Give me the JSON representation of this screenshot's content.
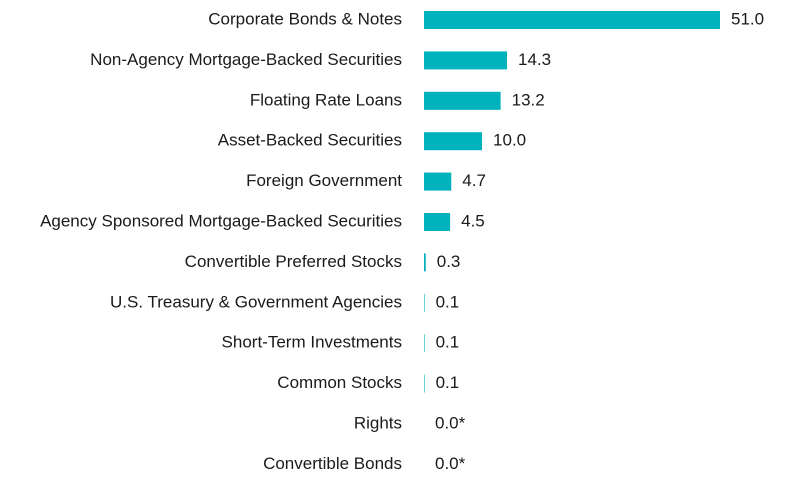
{
  "chart_data": {
    "type": "bar",
    "orientation": "horizontal",
    "color": "#00b2bb",
    "categories": [
      "Corporate Bonds & Notes",
      "Non-Agency Mortgage-Backed Securities",
      "Floating Rate Loans",
      "Asset-Backed Securities",
      "Foreign Government",
      "Agency Sponsored Mortgage-Backed Securities",
      "Convertible Preferred Stocks",
      "U.S. Treasury & Government Agencies",
      "Short-Term Investments",
      "Common Stocks",
      "Rights",
      "Convertible Bonds"
    ],
    "values": [
      51.0,
      14.3,
      13.2,
      10.0,
      4.7,
      4.5,
      0.3,
      0.1,
      0.1,
      0.1,
      0.0,
      0.0
    ],
    "value_labels": [
      "51.0",
      "14.3",
      "13.2",
      "10.0",
      "4.7",
      "4.5",
      "0.3",
      "0.1",
      "0.1",
      "0.1",
      "0.0*",
      "0.0*"
    ]
  }
}
